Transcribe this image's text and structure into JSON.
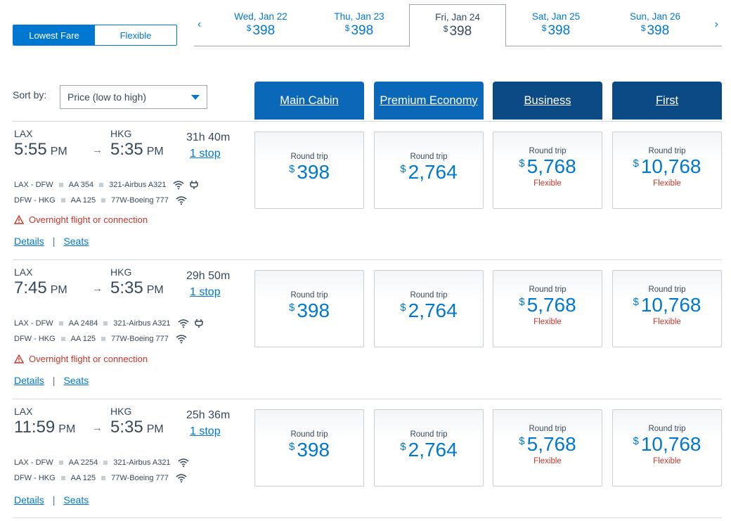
{
  "fare_toggle": {
    "options": [
      "Lowest Fare",
      "Flexible"
    ],
    "selected": "Lowest Fare"
  },
  "date_strip": {
    "dates": [
      {
        "day": "Wed, Jan 22",
        "currency": "$",
        "price": "398"
      },
      {
        "day": "Thu, Jan 23",
        "currency": "$",
        "price": "398"
      },
      {
        "day": "Fri, Jan 24",
        "currency": "$",
        "price": "398",
        "selected": true
      },
      {
        "day": "Sat, Jan 25",
        "currency": "$",
        "price": "398"
      },
      {
        "day": "Sun, Jan 26",
        "currency": "$",
        "price": "398"
      }
    ],
    "prev_icon": "chevron-left-icon",
    "next_icon": "chevron-right-icon"
  },
  "sort": {
    "label": "Sort by:",
    "value": "Price (low to high)"
  },
  "cabins": [
    {
      "label": "Main Cabin",
      "color": "#0b68b8"
    },
    {
      "label": "Premium Economy",
      "color": "#0b68b8"
    },
    {
      "label": "Business",
      "color": "#0b4a85"
    },
    {
      "label": "First",
      "color": "#0b4a85"
    }
  ],
  "flights": [
    {
      "origin": "LAX",
      "destination": "HKG",
      "depart_time": "5:55",
      "depart_ampm": "PM",
      "arrive_time": "5:35",
      "arrive_ampm": "PM",
      "duration": "31h  40m",
      "stops": "1 stop",
      "segments": [
        {
          "route": "LAX - DFW",
          "flight": "AA 354",
          "aircraft": "321-Airbus A321",
          "wifi": true,
          "power": true
        },
        {
          "route": "DFW - HKG",
          "flight": "AA 125",
          "aircraft": "77W-Boeing 777",
          "wifi": true,
          "power": false
        }
      ],
      "warning": "Overnight flight or connection",
      "links": {
        "details": "Details",
        "seats": "Seats"
      },
      "fares": [
        {
          "label": "Round trip",
          "currency": "$",
          "price": "398",
          "note": ""
        },
        {
          "label": "Round trip",
          "currency": "$",
          "price": "2,764",
          "note": ""
        },
        {
          "label": "Round trip",
          "currency": "$",
          "price": "5,768",
          "note": "Flexible"
        },
        {
          "label": "Round trip",
          "currency": "$",
          "price": "10,768",
          "note": "Flexible"
        }
      ]
    },
    {
      "origin": "LAX",
      "destination": "HKG",
      "depart_time": "7:45",
      "depart_ampm": "PM",
      "arrive_time": "5:35",
      "arrive_ampm": "PM",
      "duration": "29h  50m",
      "stops": "1 stop",
      "segments": [
        {
          "route": "LAX - DFW",
          "flight": "AA 2484",
          "aircraft": "321-Airbus A321",
          "wifi": true,
          "power": true
        },
        {
          "route": "DFW - HKG",
          "flight": "AA 125",
          "aircraft": "77W-Boeing 777",
          "wifi": true,
          "power": false
        }
      ],
      "warning": "Overnight flight or connection",
      "links": {
        "details": "Details",
        "seats": "Seats"
      },
      "fares": [
        {
          "label": "Round trip",
          "currency": "$",
          "price": "398",
          "note": ""
        },
        {
          "label": "Round trip",
          "currency": "$",
          "price": "2,764",
          "note": ""
        },
        {
          "label": "Round trip",
          "currency": "$",
          "price": "5,768",
          "note": "Flexible"
        },
        {
          "label": "Round trip",
          "currency": "$",
          "price": "10,768",
          "note": "Flexible"
        }
      ]
    },
    {
      "origin": "LAX",
      "destination": "HKG",
      "depart_time": "11:59",
      "depart_ampm": "PM",
      "arrive_time": "5:35",
      "arrive_ampm": "PM",
      "duration": "25h  36m",
      "stops": "1 stop",
      "segments": [
        {
          "route": "LAX - DFW",
          "flight": "AA 2254",
          "aircraft": "321-Airbus A321",
          "wifi": true,
          "power": false
        },
        {
          "route": "DFW - HKG",
          "flight": "AA 125",
          "aircraft": "77W-Boeing 777",
          "wifi": true,
          "power": false
        }
      ],
      "warning": "",
      "links": {
        "details": "Details",
        "seats": "Seats"
      },
      "fares": [
        {
          "label": "Round trip",
          "currency": "$",
          "price": "398",
          "note": ""
        },
        {
          "label": "Round trip",
          "currency": "$",
          "price": "2,764",
          "note": ""
        },
        {
          "label": "Round trip",
          "currency": "$",
          "price": "5,768",
          "note": "Flexible"
        },
        {
          "label": "Round trip",
          "currency": "$",
          "price": "10,768",
          "note": "Flexible"
        }
      ]
    }
  ]
}
